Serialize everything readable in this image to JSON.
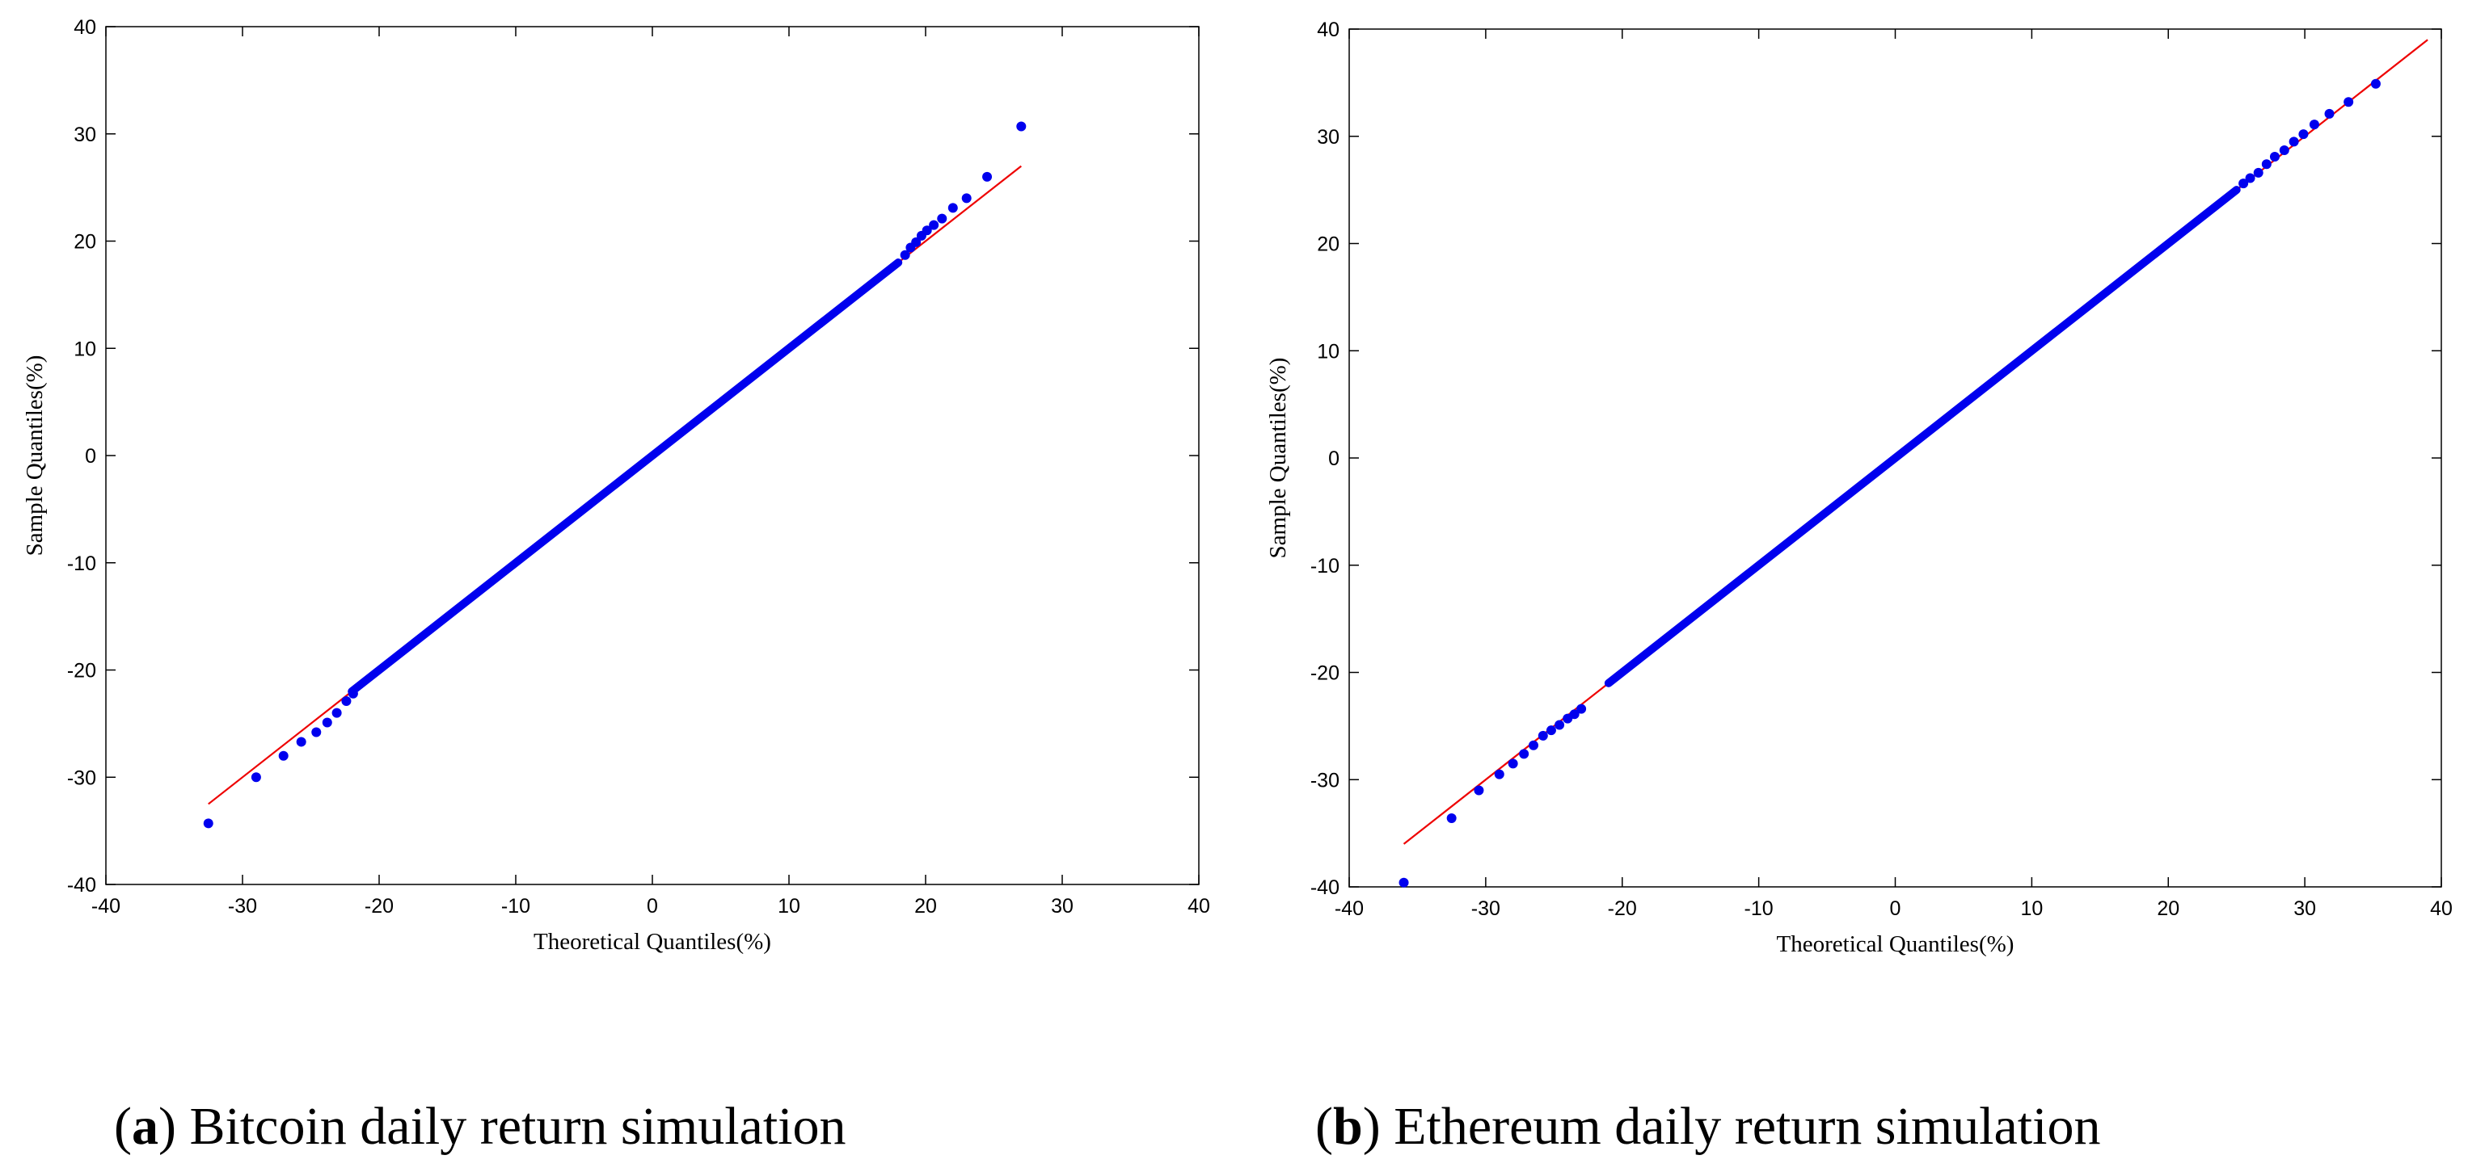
{
  "chart_data": [
    {
      "type": "scatter",
      "panel_letter": "a",
      "caption": "Bitcoin daily return simulation",
      "xlabel": "Theoretical Quantiles(%)",
      "ylabel": "Sample Quantiles(%)",
      "xlim": [
        -40,
        40
      ],
      "ylim": [
        -40,
        40
      ],
      "xticks": [
        -40,
        -30,
        -20,
        -10,
        0,
        10,
        20,
        30,
        40
      ],
      "yticks": [
        -40,
        -30,
        -20,
        -10,
        0,
        10,
        20,
        30,
        40
      ],
      "colors": {
        "points": "#0000ee",
        "reference_line": "#ee0000"
      },
      "reference_line": {
        "x": [
          -32.5,
          27
        ],
        "y": [
          -32.5,
          27
        ]
      },
      "body_range": [
        -22,
        18
      ],
      "series": [
        {
          "x": [
            -32.5,
            -29,
            -27,
            -25.7,
            -24.6,
            -23.8,
            -23.1,
            -22.4,
            -21.9,
            18.5,
            18.9,
            19.3,
            19.7,
            20.1,
            20.6,
            21.2,
            22,
            23,
            24.5,
            27
          ],
          "y": [
            -34.3,
            -30,
            -28,
            -26.7,
            -25.8,
            -24.9,
            -24,
            -22.9,
            -22.2,
            18.7,
            19.4,
            19.9,
            20.5,
            21,
            21.5,
            22.1,
            23.1,
            24,
            26,
            30.7
          ]
        }
      ]
    },
    {
      "type": "scatter",
      "panel_letter": "b",
      "caption": "Ethereum daily return simulation",
      "xlabel": "Theoretical Quantiles(%)",
      "ylabel": "Sample Quantiles(%)",
      "xlim": [
        -40,
        40
      ],
      "ylim": [
        -40,
        40
      ],
      "xticks": [
        -40,
        -30,
        -20,
        -10,
        0,
        10,
        20,
        30,
        40
      ],
      "yticks": [
        -40,
        -30,
        -20,
        -10,
        0,
        10,
        20,
        30,
        40
      ],
      "colors": {
        "points": "#0000ee",
        "reference_line": "#ee0000"
      },
      "reference_line": {
        "x": [
          -36,
          39
        ],
        "y": [
          -36,
          39
        ]
      },
      "body_range": [
        -21,
        25
      ],
      "series": [
        {
          "x": [
            -36,
            -32.5,
            -30.5,
            -29,
            -28,
            -27.2,
            -26.5,
            -25.8,
            -25.2,
            -24.6,
            -24,
            -23.5,
            -23,
            25.5,
            26,
            26.6,
            27.2,
            27.8,
            28.5,
            29.2,
            29.9,
            30.7,
            31.8,
            33.2,
            35.2
          ],
          "y": [
            -39.6,
            -33.6,
            -31,
            -29.5,
            -28.5,
            -27.6,
            -26.8,
            -25.9,
            -25.4,
            -24.9,
            -24.3,
            -23.9,
            -23.4,
            25.6,
            26.1,
            26.6,
            27.4,
            28.1,
            28.7,
            29.5,
            30.2,
            31.1,
            32.1,
            33.2,
            34.9
          ]
        }
      ]
    }
  ]
}
